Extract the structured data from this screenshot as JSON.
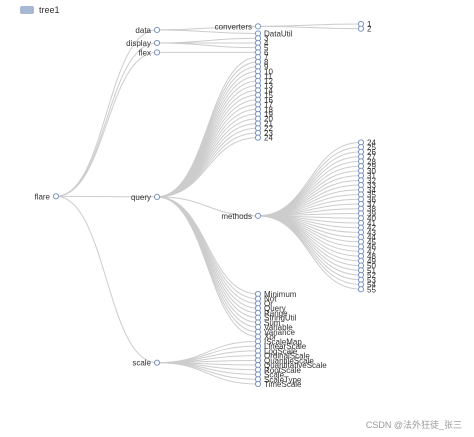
{
  "legend": {
    "label": "tree1",
    "color": "#a7b9d2"
  },
  "watermark": "CSDN @法外狂徒_张三",
  "style": {
    "link_color": "#cccccc",
    "node_stroke": "#7b96c4",
    "node_fill": "#ffffff"
  },
  "tree": {
    "name": "flare",
    "children": [
      {
        "name": "data",
        "children": [
          {
            "name": "converters",
            "children": [
              {
                "name": "1"
              },
              {
                "name": "2"
              }
            ]
          },
          {
            "name": "DataUtil"
          }
        ]
      },
      {
        "name": "display",
        "children": [
          {
            "name": "3"
          },
          {
            "name": "4"
          },
          {
            "name": "5"
          }
        ]
      },
      {
        "name": "flex",
        "children": [
          {
            "name": "6"
          }
        ]
      },
      {
        "name": "query",
        "children": [
          {
            "name": "7"
          },
          {
            "name": "8"
          },
          {
            "name": "9"
          },
          {
            "name": "10"
          },
          {
            "name": "11"
          },
          {
            "name": "12"
          },
          {
            "name": "13"
          },
          {
            "name": "14"
          },
          {
            "name": "15"
          },
          {
            "name": "16"
          },
          {
            "name": "17"
          },
          {
            "name": "18"
          },
          {
            "name": "19"
          },
          {
            "name": "20"
          },
          {
            "name": "21"
          },
          {
            "name": "22"
          },
          {
            "name": "23"
          },
          {
            "name": "24"
          },
          {
            "name": "methods",
            "children": [
              {
                "name": "24"
              },
              {
                "name": "25"
              },
              {
                "name": "26"
              },
              {
                "name": "27"
              },
              {
                "name": "28"
              },
              {
                "name": "29"
              },
              {
                "name": "30"
              },
              {
                "name": "31"
              },
              {
                "name": "32"
              },
              {
                "name": "33"
              },
              {
                "name": "34"
              },
              {
                "name": "35"
              },
              {
                "name": "36"
              },
              {
                "name": "37"
              },
              {
                "name": "38"
              },
              {
                "name": "39"
              },
              {
                "name": "40"
              },
              {
                "name": "41"
              },
              {
                "name": "42"
              },
              {
                "name": "43"
              },
              {
                "name": "44"
              },
              {
                "name": "45"
              },
              {
                "name": "46"
              },
              {
                "name": "47"
              },
              {
                "name": "48"
              },
              {
                "name": "49"
              },
              {
                "name": "50"
              },
              {
                "name": "51"
              },
              {
                "name": "52"
              },
              {
                "name": "53"
              },
              {
                "name": "54"
              },
              {
                "name": "55"
              }
            ]
          },
          {
            "name": "Minimum"
          },
          {
            "name": "Not"
          },
          {
            "name": "Or"
          },
          {
            "name": "Query"
          },
          {
            "name": "Range"
          },
          {
            "name": "StringUtil"
          },
          {
            "name": "Sum"
          },
          {
            "name": "Variable"
          },
          {
            "name": "Variance"
          },
          {
            "name": "Xor"
          }
        ]
      },
      {
        "name": "scale",
        "children": [
          {
            "name": "IScaleMap"
          },
          {
            "name": "LinearScale"
          },
          {
            "name": "LogScale"
          },
          {
            "name": "OrdinalScale"
          },
          {
            "name": "QuantileScale"
          },
          {
            "name": "QuantitativeScale"
          },
          {
            "name": "RootScale"
          },
          {
            "name": "Scale"
          },
          {
            "name": "ScaleType"
          },
          {
            "name": "TimeScale"
          }
        ]
      }
    ]
  }
}
